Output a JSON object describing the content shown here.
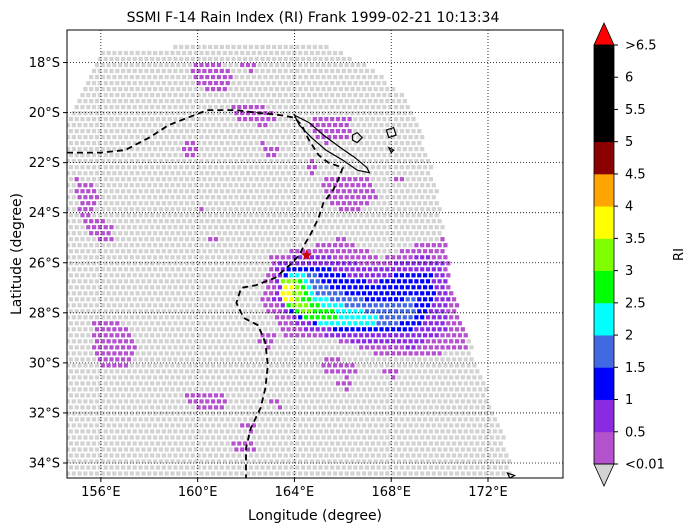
{
  "chart_data": {
    "type": "heatmap",
    "title": "SSMI F-14 Rain Index (RI) Frank 1999-02-21 10:13:34",
    "xlabel": "Longitude (degree)",
    "ylabel": "Latitude (degree)",
    "xlim": [
      154.6,
      175.1
    ],
    "ylim": [
      -34.6,
      -16.7
    ],
    "grid": true,
    "x_ticks": [
      {
        "value": 156,
        "label": "156°E"
      },
      {
        "value": 160,
        "label": "160°E"
      },
      {
        "value": 164,
        "label": "164°E"
      },
      {
        "value": 168,
        "label": "168°E"
      },
      {
        "value": 172,
        "label": "172°E"
      }
    ],
    "y_ticks": [
      {
        "value": -18,
        "label": "18°S"
      },
      {
        "value": -20,
        "label": "20°S"
      },
      {
        "value": -22,
        "label": "22°S"
      },
      {
        "value": -24,
        "label": "24°S"
      },
      {
        "value": -26,
        "label": "26°S"
      },
      {
        "value": -28,
        "label": "28°S"
      },
      {
        "value": -30,
        "label": "30°S"
      },
      {
        "value": -32,
        "label": "32°S"
      },
      {
        "value": -34,
        "label": "34°S"
      }
    ],
    "colorbar": {
      "label": "RI",
      "colors": [
        "#d3d3d3",
        "#b452cd",
        "#8a2be2",
        "#0000ff",
        "#4169e1",
        "#00ffff",
        "#00ff00",
        "#7fff00",
        "#ffff00",
        "#ffa500",
        "#8b0000",
        "#000000",
        "#000000",
        "#000000",
        "#ff0000"
      ],
      "band_colors": [
        "#b452cd",
        "#8a2be2",
        "#0000ff",
        "#4169e1",
        "#00ffff",
        "#00ff00",
        "#7fff00",
        "#ffff00",
        "#ffa500",
        "#8b0000",
        "#000000",
        "#000000",
        "#000000"
      ],
      "bounds": [
        0.01,
        0.5,
        1,
        1.5,
        2,
        2.5,
        3,
        3.5,
        4,
        4.5,
        5,
        5.5,
        6,
        6.5
      ],
      "tick_labels": [
        "<0.01",
        "0.5",
        "1",
        "1.5",
        "2",
        "2.5",
        "3",
        "3.5",
        "4",
        "4.5",
        "5",
        "5.5",
        "6",
        ">6.5"
      ],
      "under_color": "#d3d3d3",
      "over_color": "#ff0000"
    },
    "swath_boundary": [
      [
        156.0,
        -17.6
      ],
      [
        158.5,
        -17.4
      ],
      [
        161.0,
        -17.3
      ],
      [
        163.0,
        -17.2
      ],
      [
        165.0,
        -17.25
      ],
      [
        166.0,
        -17.6
      ],
      [
        167.4,
        -18.3
      ],
      [
        168.8,
        -19.6
      ],
      [
        169.5,
        -21.5
      ],
      [
        170.0,
        -23.5
      ],
      [
        170.3,
        -25.5
      ],
      [
        170.5,
        -27.0
      ],
      [
        171.2,
        -29.0
      ],
      [
        171.9,
        -31.0
      ],
      [
        172.7,
        -33.0
      ],
      [
        173.1,
        -34.6
      ],
      [
        154.6,
        -34.6
      ],
      [
        154.6,
        -20.2
      ]
    ],
    "rain_regions": [
      {
        "ri": 0.3,
        "points": [
          [
            155.0,
            -22.6
          ],
          [
            155.8,
            -22.9
          ],
          [
            155.9,
            -23.8
          ],
          [
            155.3,
            -24.3
          ],
          [
            155.0,
            -23.6
          ]
        ]
      },
      {
        "ri": 0.3,
        "points": [
          [
            155.4,
            -24.1
          ],
          [
            156.4,
            -24.4
          ],
          [
            156.6,
            -25.1
          ],
          [
            155.9,
            -25.1
          ],
          [
            155.3,
            -24.7
          ]
        ]
      },
      {
        "ri": 0.3,
        "points": [
          [
            159.8,
            -18.0
          ],
          [
            161.0,
            -18.0
          ],
          [
            161.5,
            -18.5
          ],
          [
            161.3,
            -19.2
          ],
          [
            160.2,
            -19.1
          ],
          [
            159.8,
            -18.6
          ]
        ]
      },
      {
        "ri": 0.3,
        "points": [
          [
            161.8,
            -18.0
          ],
          [
            162.5,
            -18.0
          ],
          [
            162.4,
            -18.4
          ],
          [
            161.9,
            -18.3
          ]
        ]
      },
      {
        "ri": 0.3,
        "points": [
          [
            161.3,
            -19.6
          ],
          [
            162.8,
            -19.7
          ],
          [
            163.5,
            -20.2
          ],
          [
            162.8,
            -20.6
          ],
          [
            161.6,
            -20.3
          ]
        ]
      },
      {
        "ri": 0.3,
        "points": [
          [
            164.6,
            -20.2
          ],
          [
            166.4,
            -20.1
          ],
          [
            166.3,
            -21.0
          ],
          [
            165.2,
            -21.3
          ],
          [
            164.7,
            -20.8
          ]
        ]
      },
      {
        "ri": 0.3,
        "points": [
          [
            159.3,
            -21.0
          ],
          [
            160.0,
            -21.0
          ],
          [
            160.0,
            -21.8
          ],
          [
            159.4,
            -21.7
          ]
        ]
      },
      {
        "ri": 0.3,
        "points": [
          [
            162.6,
            -21.2
          ],
          [
            163.4,
            -21.3
          ],
          [
            163.3,
            -21.9
          ],
          [
            162.7,
            -21.8
          ]
        ]
      },
      {
        "ri": 0.3,
        "points": [
          [
            164.6,
            -21.8
          ],
          [
            165.0,
            -22.0
          ],
          [
            164.9,
            -22.6
          ],
          [
            164.5,
            -22.4
          ]
        ]
      },
      {
        "ri": 0.3,
        "points": [
          [
            165.2,
            -22.6
          ],
          [
            167.0,
            -22.6
          ],
          [
            167.4,
            -23.4
          ],
          [
            166.6,
            -24.0
          ],
          [
            165.6,
            -23.8
          ],
          [
            165.1,
            -23.1
          ]
        ]
      },
      {
        "ri": 0.3,
        "points": [
          [
            168.2,
            -22.4
          ],
          [
            168.5,
            -22.5
          ],
          [
            168.4,
            -22.8
          ],
          [
            168.1,
            -22.7
          ]
        ]
      },
      {
        "ri": 0.3,
        "points": [
          [
            160.0,
            -23.8
          ],
          [
            160.4,
            -23.8
          ],
          [
            160.3,
            -24.1
          ],
          [
            159.9,
            -24.1
          ]
        ]
      },
      {
        "ri": 0.3,
        "points": [
          [
            160.4,
            -25.0
          ],
          [
            160.8,
            -25.0
          ],
          [
            160.7,
            -25.3
          ],
          [
            160.3,
            -25.3
          ]
        ]
      },
      {
        "ri": 0.3,
        "points": [
          [
            155.7,
            -28.3
          ],
          [
            156.9,
            -28.4
          ],
          [
            157.5,
            -29.3
          ],
          [
            157.2,
            -30.1
          ],
          [
            156.0,
            -30.1
          ],
          [
            155.6,
            -29.2
          ]
        ]
      },
      {
        "ri": 0.3,
        "points": [
          [
            162.5,
            -28.8
          ],
          [
            163.2,
            -28.9
          ],
          [
            163.0,
            -29.4
          ],
          [
            162.4,
            -29.3
          ]
        ]
      },
      {
        "ri": 0.3,
        "points": [
          [
            165.1,
            -29.8
          ],
          [
            166.3,
            -29.9
          ],
          [
            166.6,
            -30.4
          ],
          [
            166.2,
            -30.6
          ],
          [
            165.3,
            -30.4
          ]
        ]
      },
      {
        "ri": 0.3,
        "points": [
          [
            167.6,
            -30.2
          ],
          [
            168.3,
            -30.2
          ],
          [
            168.1,
            -30.6
          ],
          [
            167.6,
            -30.5
          ]
        ]
      },
      {
        "ri": 0.3,
        "points": [
          [
            165.8,
            -30.8
          ],
          [
            166.4,
            -30.8
          ],
          [
            166.3,
            -31.1
          ],
          [
            165.8,
            -31.0
          ]
        ]
      },
      {
        "ri": 0.3,
        "points": [
          [
            159.5,
            -31.1
          ],
          [
            161.0,
            -31.1
          ],
          [
            161.3,
            -31.7
          ],
          [
            160.5,
            -32.0
          ],
          [
            159.6,
            -31.7
          ]
        ]
      },
      {
        "ri": 0.3,
        "points": [
          [
            161.8,
            -32.3
          ],
          [
            162.5,
            -32.4
          ],
          [
            162.4,
            -32.8
          ],
          [
            161.8,
            -32.7
          ]
        ]
      },
      {
        "ri": 0.3,
        "points": [
          [
            163.0,
            -31.4
          ],
          [
            163.5,
            -31.5
          ],
          [
            163.4,
            -31.8
          ],
          [
            162.9,
            -31.7
          ]
        ]
      },
      {
        "ri": 0.3,
        "points": [
          [
            161.4,
            -33.0
          ],
          [
            162.4,
            -33.0
          ],
          [
            162.4,
            -33.5
          ],
          [
            161.5,
            -33.5
          ]
        ]
      },
      {
        "ri": 0.3,
        "points": [
          [
            163.0,
            -25.7
          ],
          [
            164.9,
            -25.3
          ],
          [
            166.0,
            -25.0
          ],
          [
            167.6,
            -25.8
          ],
          [
            169.2,
            -25.2
          ],
          [
            170.2,
            -25.0
          ],
          [
            170.5,
            -26.4
          ],
          [
            170.9,
            -27.6
          ],
          [
            171.2,
            -28.8
          ],
          [
            171.1,
            -29.4
          ],
          [
            169.3,
            -29.8
          ],
          [
            167.6,
            -29.8
          ],
          [
            166.1,
            -29.2
          ],
          [
            164.8,
            -29.0
          ],
          [
            163.6,
            -28.9
          ],
          [
            162.6,
            -27.6
          ],
          [
            162.9,
            -26.2
          ]
        ]
      },
      {
        "ri": 0.8,
        "points": [
          [
            163.3,
            -25.9
          ],
          [
            164.7,
            -25.6
          ],
          [
            165.6,
            -25.8
          ],
          [
            167.5,
            -26.2
          ],
          [
            169.2,
            -25.7
          ],
          [
            170.1,
            -25.9
          ],
          [
            170.4,
            -27.3
          ],
          [
            170.3,
            -28.8
          ],
          [
            168.9,
            -29.4
          ],
          [
            167.3,
            -29.3
          ],
          [
            165.6,
            -29.0
          ],
          [
            164.2,
            -28.6
          ],
          [
            163.1,
            -27.5
          ]
        ]
      },
      {
        "ri": 1.2,
        "points": [
          [
            163.6,
            -26.2
          ],
          [
            165.0,
            -26.1
          ],
          [
            167.2,
            -26.8
          ],
          [
            168.8,
            -26.3
          ],
          [
            169.7,
            -26.4
          ],
          [
            169.8,
            -27.6
          ],
          [
            169.3,
            -28.6
          ],
          [
            168.0,
            -28.9
          ],
          [
            166.6,
            -28.8
          ],
          [
            165.0,
            -28.6
          ],
          [
            163.8,
            -28.0
          ],
          [
            163.4,
            -27.2
          ]
        ]
      },
      {
        "ri": 1.8,
        "points": [
          [
            163.8,
            -26.4
          ],
          [
            164.6,
            -26.3
          ],
          [
            165.6,
            -27.1
          ],
          [
            167.0,
            -27.5
          ],
          [
            168.2,
            -27.5
          ],
          [
            169.0,
            -27.4
          ],
          [
            168.9,
            -28.2
          ],
          [
            168.2,
            -28.5
          ],
          [
            166.5,
            -28.4
          ],
          [
            164.9,
            -28.3
          ],
          [
            163.8,
            -27.7
          ]
        ]
      },
      {
        "ri": 2.2,
        "points": [
          [
            163.7,
            -26.5
          ],
          [
            164.5,
            -26.4
          ],
          [
            165.0,
            -27.3
          ],
          [
            166.2,
            -27.8
          ],
          [
            167.5,
            -28.1
          ],
          [
            167.4,
            -28.6
          ],
          [
            166.1,
            -28.6
          ],
          [
            164.8,
            -28.4
          ],
          [
            163.8,
            -27.8
          ]
        ]
      },
      {
        "ri": 2.8,
        "points": [
          [
            163.5,
            -26.6
          ],
          [
            164.3,
            -26.5
          ],
          [
            164.6,
            -27.3
          ],
          [
            165.2,
            -27.8
          ],
          [
            166.0,
            -28.1
          ],
          [
            165.5,
            -28.4
          ],
          [
            164.5,
            -28.2
          ],
          [
            163.6,
            -27.6
          ]
        ]
      },
      {
        "ri": 3.2,
        "points": [
          [
            163.4,
            -26.7
          ],
          [
            164.1,
            -26.6
          ],
          [
            164.3,
            -27.4
          ],
          [
            164.8,
            -27.9
          ],
          [
            164.4,
            -28.0
          ],
          [
            163.7,
            -27.6
          ]
        ]
      },
      {
        "ri": 3.8,
        "points": [
          [
            163.5,
            -26.9
          ],
          [
            163.9,
            -26.8
          ],
          [
            164.0,
            -27.3
          ],
          [
            163.8,
            -27.7
          ],
          [
            163.5,
            -27.4
          ]
        ]
      }
    ],
    "storm_track": [
      [
        154.6,
        -21.6
      ],
      [
        156.0,
        -21.6
      ],
      [
        157.0,
        -21.5
      ],
      [
        158.0,
        -21.0
      ],
      [
        158.8,
        -20.5
      ],
      [
        159.6,
        -20.2
      ],
      [
        160.4,
        -19.9
      ],
      [
        161.6,
        -19.9
      ],
      [
        162.4,
        -20.0
      ],
      [
        163.4,
        -20.1
      ],
      [
        164.0,
        -20.2
      ],
      [
        164.3,
        -20.5
      ],
      [
        164.6,
        -21.1
      ],
      [
        165.0,
        -21.7
      ],
      [
        165.4,
        -22.0
      ],
      [
        166.0,
        -22.2
      ],
      [
        165.8,
        -22.7
      ],
      [
        165.6,
        -23.1
      ],
      [
        165.2,
        -23.6
      ],
      [
        165.0,
        -24.2
      ],
      [
        164.7,
        -24.8
      ],
      [
        164.4,
        -25.3
      ],
      [
        164.2,
        -25.7
      ],
      [
        163.8,
        -26.1
      ],
      [
        163.2,
        -26.6
      ],
      [
        162.4,
        -26.9
      ],
      [
        161.8,
        -27.0
      ],
      [
        161.6,
        -27.6
      ],
      [
        161.9,
        -28.2
      ],
      [
        162.5,
        -28.5
      ],
      [
        162.8,
        -29.2
      ],
      [
        162.9,
        -30.1
      ],
      [
        162.8,
        -31.0
      ],
      [
        162.6,
        -31.8
      ],
      [
        162.2,
        -32.6
      ],
      [
        162.0,
        -33.4
      ],
      [
        162.0,
        -34.6
      ]
    ],
    "storm_center": {
      "lon": 164.5,
      "lat": -25.7
    },
    "coastlines": [
      [
        [
          164.0,
          -20.1
        ],
        [
          164.6,
          -20.4
        ],
        [
          165.2,
          -20.9
        ],
        [
          165.9,
          -21.4
        ],
        [
          166.5,
          -21.8
        ],
        [
          167.0,
          -22.2
        ],
        [
          167.1,
          -22.4
        ],
        [
          166.6,
          -22.3
        ],
        [
          166.0,
          -21.9
        ],
        [
          165.3,
          -21.5
        ],
        [
          164.7,
          -21.0
        ],
        [
          164.2,
          -20.5
        ]
      ],
      [
        [
          166.4,
          -20.9
        ],
        [
          166.6,
          -20.8
        ],
        [
          166.8,
          -21.0
        ],
        [
          166.6,
          -21.2
        ],
        [
          166.4,
          -21.1
        ]
      ],
      [
        [
          167.8,
          -20.7
        ],
        [
          168.1,
          -20.6
        ],
        [
          168.2,
          -20.9
        ],
        [
          167.9,
          -21.0
        ]
      ],
      [
        [
          167.9,
          -21.4
        ],
        [
          168.1,
          -21.5
        ],
        [
          168.0,
          -21.6
        ]
      ],
      [
        [
          172.8,
          -34.4
        ],
        [
          173.1,
          -34.5
        ],
        [
          172.9,
          -34.6
        ]
      ]
    ]
  }
}
